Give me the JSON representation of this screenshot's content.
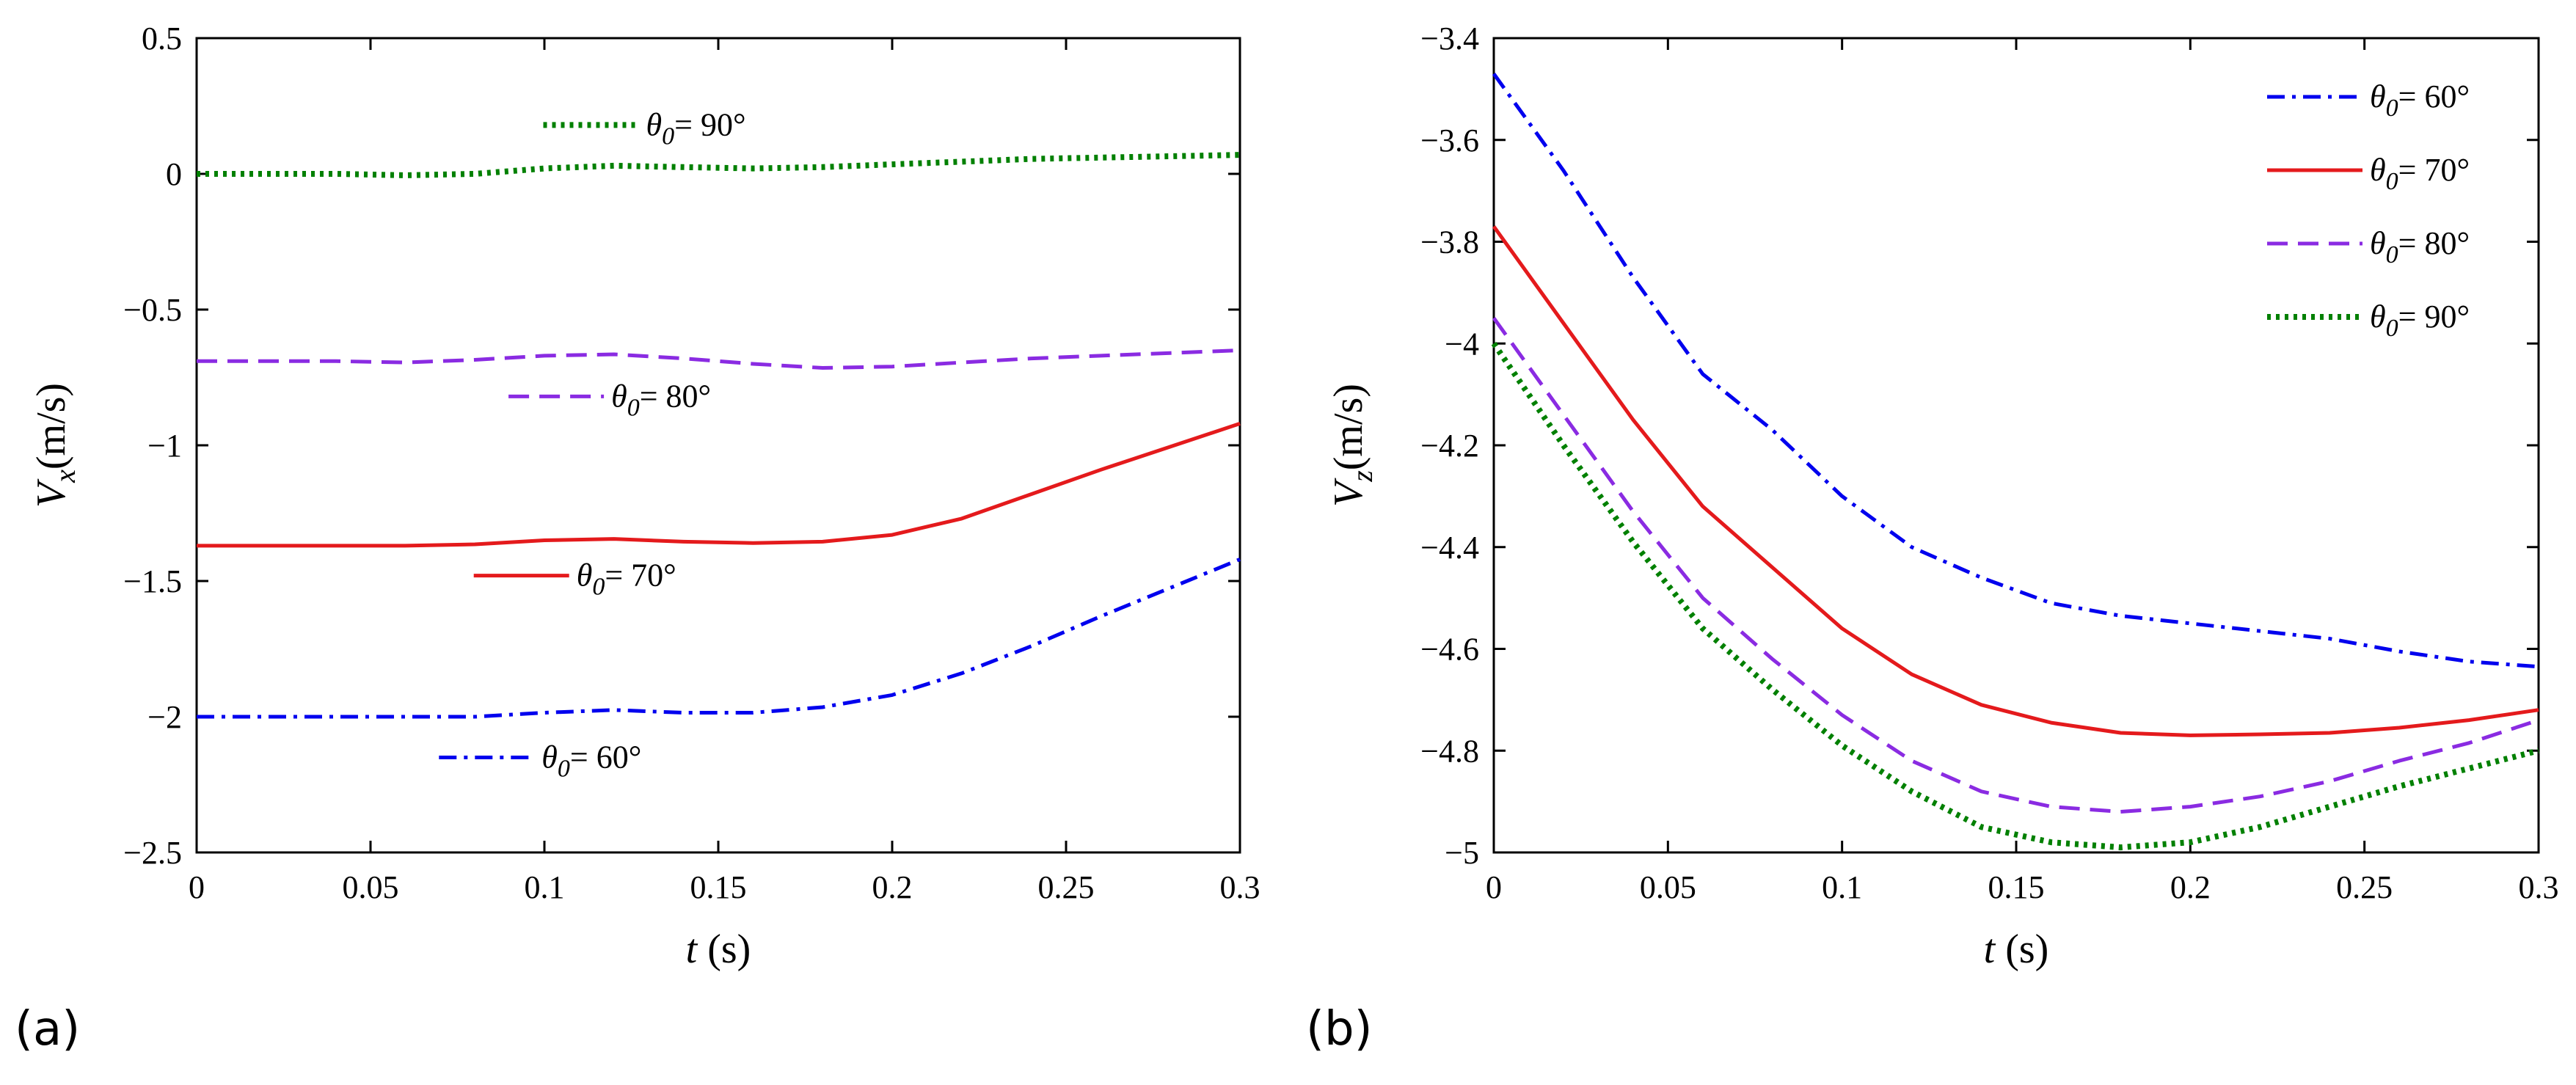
{
  "panels": [
    {
      "label": "(a)"
    },
    {
      "label": "(b)"
    }
  ],
  "chart_data": [
    {
      "type": "line",
      "panel": "(a)",
      "xlabel": {
        "var": "t",
        "unit": "(s)"
      },
      "ylabel": {
        "var": "V",
        "sub": "x",
        "unit": "(m/s)"
      },
      "xlim": [
        0,
        0.3
      ],
      "ylim": [
        -2.5,
        0.5
      ],
      "xticks": [
        0,
        0.05,
        0.1,
        0.15,
        0.2,
        0.25,
        0.3
      ],
      "xtick_labels": [
        "0",
        "0.05",
        "0.1",
        "0.15",
        "0.2",
        "0.25",
        "0.3"
      ],
      "yticks": [
        -2.5,
        -2,
        -1.5,
        -1,
        -0.5,
        0,
        0.5
      ],
      "ytick_labels": [
        "−2.5",
        "−2",
        "−1.5",
        "−1",
        "−0.5",
        "0",
        "0.5"
      ],
      "legend_position": "inline labels next to each curve",
      "series": [
        {
          "name": "60°",
          "sym": "θ",
          "sub": "0",
          "color": "#0000ee",
          "style": "dashdot",
          "label_anchor": {
            "x": 0.095,
            "y": -2.15
          },
          "x": [
            0,
            0.02,
            0.04,
            0.06,
            0.08,
            0.1,
            0.12,
            0.14,
            0.16,
            0.18,
            0.2,
            0.22,
            0.24,
            0.26,
            0.28,
            0.3
          ],
          "values": [
            -2.0,
            -2.0,
            -2.0,
            -2.0,
            -2.0,
            -1.985,
            -1.975,
            -1.985,
            -1.985,
            -1.965,
            -1.92,
            -1.84,
            -1.74,
            -1.63,
            -1.525,
            -1.42
          ]
        },
        {
          "name": "70°",
          "sym": "θ",
          "sub": "0",
          "color": "#e41a1c",
          "style": "solid",
          "label_anchor": {
            "x": 0.105,
            "y": -1.48
          },
          "x": [
            0,
            0.02,
            0.04,
            0.06,
            0.08,
            0.1,
            0.12,
            0.14,
            0.16,
            0.18,
            0.2,
            0.22,
            0.24,
            0.26,
            0.28,
            0.3
          ],
          "values": [
            -1.37,
            -1.37,
            -1.37,
            -1.37,
            -1.365,
            -1.35,
            -1.345,
            -1.355,
            -1.36,
            -1.355,
            -1.33,
            -1.27,
            -1.18,
            -1.09,
            -1.005,
            -0.92
          ]
        },
        {
          "name": "80°",
          "sym": "θ",
          "sub": "0",
          "color": "#8a2be2",
          "style": "dashed",
          "label_anchor": {
            "x": 0.115,
            "y": -0.82
          },
          "x": [
            0,
            0.02,
            0.04,
            0.06,
            0.08,
            0.1,
            0.12,
            0.14,
            0.16,
            0.18,
            0.2,
            0.22,
            0.24,
            0.26,
            0.28,
            0.3
          ],
          "values": [
            -0.69,
            -0.69,
            -0.69,
            -0.695,
            -0.685,
            -0.67,
            -0.665,
            -0.68,
            -0.7,
            -0.715,
            -0.71,
            -0.695,
            -0.68,
            -0.67,
            -0.66,
            -0.65
          ]
        },
        {
          "name": "90°",
          "sym": "θ",
          "sub": "0",
          "color": "#008000",
          "style": "dotted",
          "label_anchor": {
            "x": 0.125,
            "y": 0.18
          },
          "x": [
            0,
            0.02,
            0.04,
            0.06,
            0.08,
            0.1,
            0.12,
            0.14,
            0.16,
            0.18,
            0.2,
            0.22,
            0.24,
            0.26,
            0.28,
            0.3
          ],
          "values": [
            0.0,
            0.0,
            0.0,
            -0.005,
            0.0,
            0.02,
            0.03,
            0.025,
            0.02,
            0.025,
            0.035,
            0.045,
            0.055,
            0.06,
            0.065,
            0.07
          ]
        }
      ]
    },
    {
      "type": "line",
      "panel": "(b)",
      "xlabel": {
        "var": "t",
        "unit": "(s)"
      },
      "ylabel": {
        "var": "V",
        "sub": "z",
        "unit": "(m/s)"
      },
      "xlim": [
        0,
        0.3
      ],
      "ylim": [
        -5,
        -3.4
      ],
      "xticks": [
        0,
        0.05,
        0.1,
        0.15,
        0.2,
        0.25,
        0.3
      ],
      "xtick_labels": [
        "0",
        "0.05",
        "0.1",
        "0.15",
        "0.2",
        "0.25",
        "0.3"
      ],
      "yticks": [
        -5,
        -4.8,
        -4.6,
        -4.4,
        -4.2,
        -4,
        -3.8,
        -3.6,
        -3.4
      ],
      "ytick_labels": [
        "−5",
        "−4.8",
        "−4.6",
        "−4.4",
        "−4.2",
        "−4",
        "−3.8",
        "−3.6",
        "−3.4"
      ],
      "legend_position": "top-right",
      "series": [
        {
          "name": "60°",
          "sym": "θ",
          "sub": "0",
          "color": "#0000ee",
          "style": "dashdot",
          "x": [
            0,
            0.02,
            0.04,
            0.06,
            0.08,
            0.1,
            0.12,
            0.14,
            0.16,
            0.18,
            0.2,
            0.22,
            0.24,
            0.26,
            0.28,
            0.3
          ],
          "values": [
            -3.47,
            -3.66,
            -3.87,
            -4.06,
            -4.17,
            -4.3,
            -4.4,
            -4.46,
            -4.51,
            -4.535,
            -4.55,
            -4.565,
            -4.58,
            -4.605,
            -4.625,
            -4.635
          ]
        },
        {
          "name": "70°",
          "sym": "θ",
          "sub": "0",
          "color": "#e41a1c",
          "style": "solid",
          "x": [
            0,
            0.02,
            0.04,
            0.06,
            0.08,
            0.1,
            0.12,
            0.14,
            0.16,
            0.18,
            0.2,
            0.22,
            0.24,
            0.26,
            0.28,
            0.3
          ],
          "values": [
            -3.77,
            -3.96,
            -4.15,
            -4.32,
            -4.44,
            -4.56,
            -4.65,
            -4.71,
            -4.745,
            -4.765,
            -4.77,
            -4.768,
            -4.765,
            -4.755,
            -4.74,
            -4.72
          ]
        },
        {
          "name": "80°",
          "sym": "θ",
          "sub": "0",
          "color": "#8a2be2",
          "style": "dashed",
          "x": [
            0,
            0.02,
            0.04,
            0.06,
            0.08,
            0.1,
            0.12,
            0.14,
            0.16,
            0.18,
            0.2,
            0.22,
            0.24,
            0.26,
            0.28,
            0.3
          ],
          "values": [
            -3.95,
            -4.14,
            -4.33,
            -4.5,
            -4.62,
            -4.73,
            -4.82,
            -4.88,
            -4.91,
            -4.92,
            -4.91,
            -4.89,
            -4.86,
            -4.82,
            -4.785,
            -4.74
          ]
        },
        {
          "name": "90°",
          "sym": "θ",
          "sub": "0",
          "color": "#008000",
          "style": "dotted",
          "x": [
            0,
            0.02,
            0.04,
            0.06,
            0.08,
            0.1,
            0.12,
            0.14,
            0.16,
            0.18,
            0.2,
            0.22,
            0.24,
            0.26,
            0.28,
            0.3
          ],
          "values": [
            -4.0,
            -4.2,
            -4.39,
            -4.56,
            -4.68,
            -4.79,
            -4.88,
            -4.95,
            -4.98,
            -4.99,
            -4.98,
            -4.95,
            -4.91,
            -4.87,
            -4.835,
            -4.8
          ]
        }
      ]
    }
  ]
}
